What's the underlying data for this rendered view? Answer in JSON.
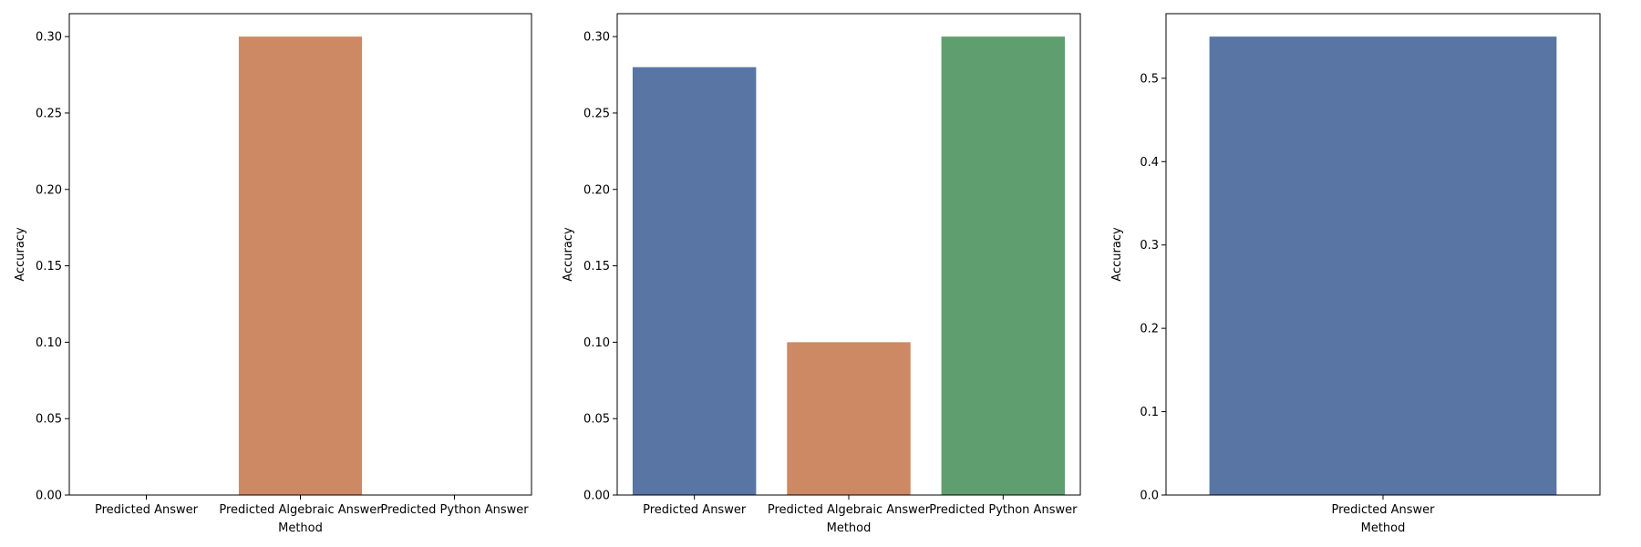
{
  "chart_data": [
    {
      "type": "bar",
      "xlabel": "Method",
      "ylabel": "Accuracy",
      "categories": [
        "Predicted Answer",
        "Predicted Algebraic Answer",
        "Predicted Python Answer"
      ],
      "values": [
        0.0,
        0.3,
        0.0
      ],
      "colors": [
        "#5875a4",
        "#cc8963",
        "#5f9e6e"
      ],
      "ylim": [
        0,
        0.315
      ],
      "yticks": [
        0.0,
        0.05,
        0.1,
        0.15,
        0.2,
        0.25,
        0.3
      ],
      "ytick_labels": [
        "0.00",
        "0.05",
        "0.10",
        "0.15",
        "0.20",
        "0.25",
        "0.30"
      ],
      "grid": false,
      "legend": "none"
    },
    {
      "type": "bar",
      "xlabel": "Method",
      "ylabel": "Accuracy",
      "categories": [
        "Predicted Answer",
        "Predicted Algebraic Answer",
        "Predicted Python Answer"
      ],
      "values": [
        0.28,
        0.1,
        0.3
      ],
      "colors": [
        "#5875a4",
        "#cc8963",
        "#5f9e6e"
      ],
      "ylim": [
        0,
        0.315
      ],
      "yticks": [
        0.0,
        0.05,
        0.1,
        0.15,
        0.2,
        0.25,
        0.3
      ],
      "ytick_labels": [
        "0.00",
        "0.05",
        "0.10",
        "0.15",
        "0.20",
        "0.25",
        "0.30"
      ],
      "grid": false,
      "legend": "none"
    },
    {
      "type": "bar",
      "xlabel": "Method",
      "ylabel": "Accuracy",
      "categories": [
        "Predicted Answer"
      ],
      "values": [
        0.55
      ],
      "colors": [
        "#5875a4"
      ],
      "ylim": [
        0,
        0.5775
      ],
      "yticks": [
        0.0,
        0.1,
        0.2,
        0.3,
        0.4,
        0.5
      ],
      "ytick_labels": [
        "0.0",
        "0.1",
        "0.2",
        "0.3",
        "0.4",
        "0.5"
      ],
      "grid": false,
      "legend": "none"
    }
  ]
}
